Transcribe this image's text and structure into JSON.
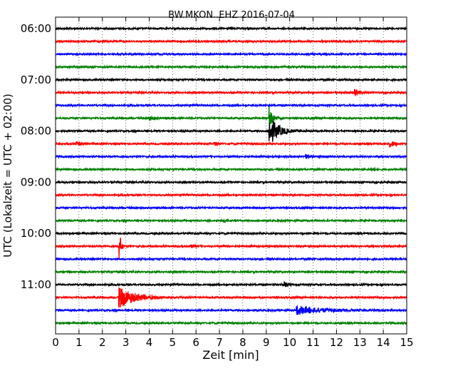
{
  "chart_data": {
    "type": "line",
    "title": "BW.MKON..EHZ 2016-07-04",
    "xlabel": "Zeit  [min]",
    "ylabel": "UTC (Lokalzeit = UTC + 02:00)",
    "xlim": [
      0,
      15
    ],
    "x_ticks": [
      "0",
      "1",
      "2",
      "3",
      "4",
      "5",
      "6",
      "7",
      "8",
      "9",
      "10",
      "11",
      "12",
      "13",
      "14",
      "15"
    ],
    "y_tick_labels": [
      "06:00",
      "07:00",
      "08:00",
      "09:00",
      "10:00",
      "11:00"
    ],
    "grid": "vertical dotted",
    "trace_minutes_per_line": 15,
    "colors": [
      "#000000",
      "#ff0000",
      "#0000ff",
      "#008000"
    ],
    "traces": [
      {
        "utc": "06:00",
        "color": "#000000",
        "events": []
      },
      {
        "utc": "06:15",
        "color": "#ff0000",
        "events": []
      },
      {
        "utc": "06:30",
        "color": "#0000ff",
        "events": []
      },
      {
        "utc": "06:45",
        "color": "#008000",
        "events": []
      },
      {
        "utc": "07:00",
        "color": "#000000",
        "events": []
      },
      {
        "utc": "07:15",
        "color": "#ff0000",
        "events": [
          {
            "t": 12.8,
            "amp": 0.5,
            "dur": 0.4
          }
        ]
      },
      {
        "utc": "07:30",
        "color": "#0000ff",
        "events": []
      },
      {
        "utc": "07:45",
        "color": "#008000",
        "events": [
          {
            "t": 4.0,
            "amp": 0.3,
            "dur": 0.5
          },
          {
            "t": 9.15,
            "amp": 1.8,
            "dur": 0.3
          }
        ]
      },
      {
        "utc": "08:00",
        "color": "#000000",
        "events": [
          {
            "t": 9.15,
            "amp": 2.2,
            "dur": 0.8
          }
        ]
      },
      {
        "utc": "08:15",
        "color": "#ff0000",
        "events": [
          {
            "t": 0.9,
            "amp": 0.3,
            "dur": 0.4
          },
          {
            "t": 6.8,
            "amp": 0.25,
            "dur": 0.3
          },
          {
            "t": 14.3,
            "amp": 0.45,
            "dur": 0.5
          }
        ]
      },
      {
        "utc": "08:30",
        "color": "#0000ff",
        "events": [
          {
            "t": 10.7,
            "amp": 0.3,
            "dur": 0.4
          }
        ]
      },
      {
        "utc": "08:45",
        "color": "#008000",
        "events": [
          {
            "t": 13.5,
            "amp": 0.25,
            "dur": 0.3
          }
        ]
      },
      {
        "utc": "09:00",
        "color": "#000000",
        "events": []
      },
      {
        "utc": "09:15",
        "color": "#ff0000",
        "events": []
      },
      {
        "utc": "09:30",
        "color": "#0000ff",
        "events": []
      },
      {
        "utc": "09:45",
        "color": "#008000",
        "events": [
          {
            "t": 7.2,
            "amp": 0.25,
            "dur": 0.3
          }
        ]
      },
      {
        "utc": "10:00",
        "color": "#000000",
        "events": []
      },
      {
        "utc": "10:15",
        "color": "#ff0000",
        "events": [
          {
            "t": 5.8,
            "amp": 0.3,
            "dur": 0.2
          },
          {
            "t": 2.75,
            "amp": 1.9,
            "dur": 0.15
          }
        ]
      },
      {
        "utc": "10:30",
        "color": "#0000ff",
        "events": []
      },
      {
        "utc": "10:45",
        "color": "#008000",
        "events": []
      },
      {
        "utc": "11:00",
        "color": "#000000",
        "events": [
          {
            "t": 9.8,
            "amp": 0.4,
            "dur": 0.3
          }
        ]
      },
      {
        "utc": "11:15",
        "color": "#ff0000",
        "events": [
          {
            "t": 2.75,
            "amp": 1.6,
            "dur": 1.4
          }
        ]
      },
      {
        "utc": "11:30",
        "color": "#0000ff",
        "events": [
          {
            "t": 10.3,
            "amp": 0.65,
            "dur": 2.4
          }
        ]
      },
      {
        "utc": "11:45",
        "color": "#008000",
        "events": []
      }
    ]
  }
}
